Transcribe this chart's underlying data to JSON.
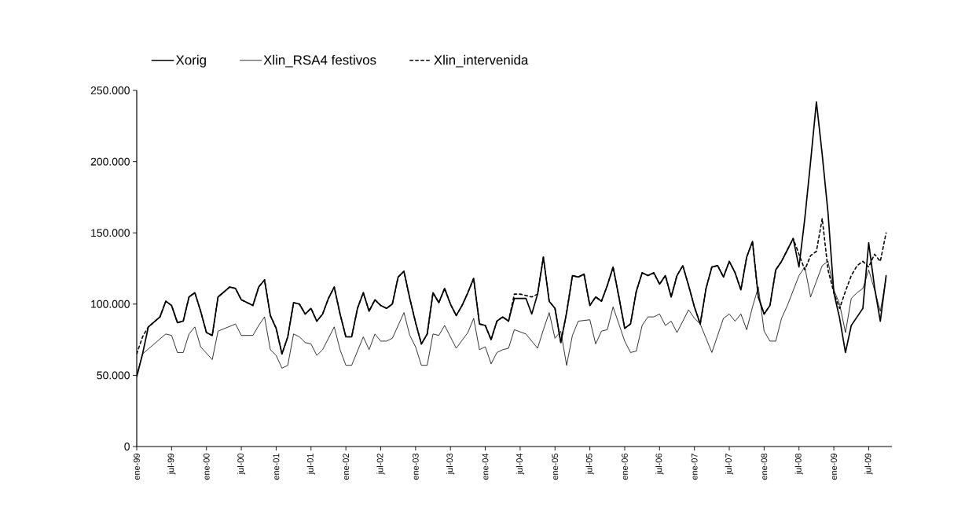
{
  "chart_data": {
    "type": "line",
    "x": [
      "1999-01",
      "1999-02",
      "1999-03",
      "1999-05",
      "1999-06",
      "1999-07",
      "1999-08",
      "1999-09",
      "1999-10",
      "1999-11",
      "1999-12",
      "2000-01",
      "2000-02",
      "2000-03",
      "2000-05",
      "2000-06",
      "2000-07",
      "2000-09",
      "2000-10",
      "2000-11",
      "2000-12",
      "2001-01",
      "2001-02",
      "2001-03",
      "2001-04",
      "2001-05",
      "2001-06",
      "2001-07",
      "2001-08",
      "2001-09",
      "2001-10",
      "2001-11",
      "2001-12",
      "2002-01",
      "2002-02",
      "2002-03",
      "2002-04",
      "2002-05",
      "2002-06",
      "2002-07",
      "2002-08",
      "2002-09",
      "2002-10",
      "2002-11",
      "2002-12",
      "2003-01",
      "2003-02",
      "2003-03",
      "2003-04",
      "2003-05",
      "2003-06",
      "2003-07",
      "2003-08",
      "2003-09",
      "2003-10",
      "2003-11",
      "2003-12",
      "2004-01",
      "2004-02",
      "2004-03",
      "2004-04",
      "2004-05",
      "2004-06",
      "2004-07",
      "2004-08",
      "2004-09",
      "2004-10",
      "2004-11",
      "2004-12",
      "2005-01",
      "2005-02",
      "2005-03",
      "2005-04",
      "2005-05",
      "2005-06",
      "2005-07",
      "2005-08",
      "2005-09",
      "2005-10",
      "2005-11",
      "2005-12",
      "2006-01",
      "2006-02",
      "2006-03",
      "2006-04",
      "2006-05",
      "2006-06",
      "2006-07",
      "2006-08",
      "2006-09",
      "2006-10",
      "2006-11",
      "2006-12",
      "2007-01",
      "2007-02",
      "2007-03",
      "2007-04",
      "2007-05",
      "2007-06",
      "2007-07",
      "2007-08",
      "2007-09",
      "2007-10",
      "2007-11",
      "2007-12",
      "2008-01",
      "2008-02",
      "2008-03",
      "2008-04",
      "2008-05",
      "2008-06",
      "2008-07",
      "2008-08",
      "2008-09",
      "2008-10",
      "2008-11",
      "2008-12",
      "2009-01",
      "2009-02",
      "2009-03",
      "2009-04",
      "2009-05",
      "2009-06",
      "2009-07",
      "2009-08",
      "2009-09",
      "2009-10"
    ],
    "series": [
      {
        "name": "Xorig",
        "color": "#000000",
        "line_style": "solid",
        "values": [
          49000,
          65000,
          84000,
          91000,
          102000,
          99000,
          87000,
          88000,
          105000,
          108000,
          95000,
          80000,
          78000,
          105000,
          112000,
          111000,
          103000,
          99000,
          112000,
          117000,
          92000,
          83000,
          65000,
          77000,
          101000,
          100000,
          93000,
          97000,
          88000,
          93000,
          104000,
          112000,
          93000,
          77000,
          77000,
          97000,
          108000,
          95000,
          103000,
          99000,
          97000,
          100000,
          119000,
          123000,
          104000,
          87000,
          72000,
          79000,
          108000,
          101000,
          111000,
          100000,
          92000,
          99000,
          108000,
          118000,
          86000,
          85000,
          75000,
          88000,
          91000,
          88000,
          104000,
          104000,
          104000,
          93000,
          107000,
          133000,
          102000,
          97000,
          73000,
          94000,
          120000,
          119000,
          121000,
          99000,
          105000,
          102000,
          113000,
          126000,
          105000,
          83000,
          86000,
          109000,
          122000,
          120000,
          122000,
          114000,
          120000,
          105000,
          120000,
          127000,
          113000,
          98000,
          86000,
          111000,
          126000,
          127000,
          119000,
          130000,
          122000,
          110000,
          133000,
          144000,
          105000,
          93000,
          99000,
          124000,
          130000,
          138000,
          146000,
          126000,
          160000,
          200000,
          242000,
          205000,
          164000,
          108000,
          90000,
          66000,
          85000,
          91000,
          97000,
          143000,
          112000,
          88000,
          120000
        ]
      },
      {
        "name": "Xlin_RSA4 festivos",
        "color": "#000000",
        "line_style": "solid",
        "x": [
          "1999-01",
          "1999-02",
          "1999-04",
          "1999-06",
          "1999-07",
          "1999-08",
          "1999-09",
          "1999-10",
          "1999-11",
          "1999-12",
          "2000-02",
          "2000-03",
          "2000-06",
          "2000-07",
          "2000-09",
          "2000-10",
          "2000-11",
          "2000-12",
          "2001-01",
          "2001-02",
          "2001-03",
          "2001-04",
          "2001-05",
          "2001-06",
          "2001-07",
          "2001-08",
          "2001-09",
          "2001-11",
          "2001-12",
          "2002-01",
          "2002-02",
          "2002-04",
          "2002-05",
          "2002-06",
          "2002-07",
          "2002-08",
          "2002-09",
          "2002-11",
          "2002-12",
          "2003-01",
          "2003-02",
          "2003-03",
          "2003-04",
          "2003-05",
          "2003-06",
          "2003-08",
          "2003-10",
          "2003-11",
          "2003-12",
          "2004-01",
          "2004-02",
          "2004-03",
          "2004-04",
          "2004-05",
          "2004-06",
          "2004-08",
          "2004-10",
          "2004-11",
          "2004-12",
          "2005-01",
          "2005-02",
          "2005-03",
          "2005-04",
          "2005-05",
          "2005-07",
          "2005-08",
          "2005-09",
          "2005-10",
          "2005-11",
          "2006-01",
          "2006-02",
          "2006-03",
          "2006-04",
          "2006-05",
          "2006-06",
          "2006-07",
          "2006-08",
          "2006-09",
          "2006-10",
          "2006-11",
          "2006-12",
          "2007-01",
          "2007-02",
          "2007-03",
          "2007-04",
          "2007-06",
          "2007-07",
          "2007-08",
          "2007-09",
          "2007-10",
          "2007-11",
          "2007-12",
          "2008-01",
          "2008-02",
          "2008-03",
          "2008-04",
          "2008-05",
          "2008-07",
          "2008-08",
          "2008-09",
          "2008-10",
          "2008-11",
          "2008-12",
          "2009-01",
          "2009-02",
          "2009-03",
          "2009-04",
          "2009-05",
          "2009-06",
          "2009-07",
          "2009-08",
          "2009-09",
          "2009-10"
        ],
        "values": [
          50000,
          65000,
          72000,
          79000,
          78000,
          66000,
          66000,
          79000,
          84000,
          70000,
          61000,
          81000,
          86000,
          78000,
          78000,
          85000,
          91000,
          68000,
          64000,
          55000,
          57000,
          79000,
          77000,
          73000,
          72000,
          64000,
          68000,
          84000,
          68000,
          57000,
          57000,
          77000,
          68000,
          79000,
          74000,
          74000,
          76000,
          94000,
          78000,
          70000,
          57000,
          57000,
          79000,
          78000,
          85000,
          69000,
          80000,
          90000,
          68000,
          70000,
          58000,
          66000,
          68000,
          69000,
          82000,
          79000,
          69000,
          82000,
          94000,
          76000,
          81000,
          57000,
          78000,
          88000,
          89000,
          72000,
          81000,
          82000,
          98000,
          74000,
          66000,
          67000,
          85000,
          91000,
          91000,
          93000,
          85000,
          88000,
          80000,
          88000,
          96000,
          90000,
          86000,
          76000,
          66000,
          90000,
          93000,
          88000,
          93000,
          82000,
          98000,
          112000,
          81000,
          74000,
          74000,
          90000,
          99000,
          120000,
          126000,
          105000,
          116000,
          127000,
          130000,
          110000,
          100000,
          80000,
          104000,
          108000,
          111000,
          124000,
          110000,
          95000,
          118000
        ]
      },
      {
        "name": "Xlin_intervenida",
        "color": "#000000",
        "line_style": "dashed",
        "values": [
          65000,
          77000,
          84000,
          91000,
          102000,
          99000,
          87000,
          88000,
          105000,
          108000,
          95000,
          80000,
          78000,
          105000,
          112000,
          111000,
          103000,
          99000,
          112000,
          117000,
          92000,
          83000,
          65000,
          77000,
          101000,
          100000,
          93000,
          97000,
          88000,
          93000,
          104000,
          112000,
          93000,
          77000,
          77000,
          97000,
          108000,
          95000,
          103000,
          99000,
          97000,
          100000,
          119000,
          123000,
          104000,
          87000,
          72000,
          79000,
          108000,
          101000,
          111000,
          100000,
          92000,
          99000,
          108000,
          118000,
          86000,
          85000,
          75000,
          88000,
          91000,
          88000,
          107000,
          107000,
          106000,
          105000,
          107000,
          133000,
          102000,
          97000,
          73000,
          94000,
          120000,
          119000,
          121000,
          99000,
          105000,
          102000,
          113000,
          126000,
          105000,
          83000,
          86000,
          109000,
          122000,
          120000,
          122000,
          114000,
          120000,
          105000,
          120000,
          127000,
          113000,
          98000,
          86000,
          111000,
          126000,
          127000,
          119000,
          130000,
          122000,
          110000,
          133000,
          144000,
          105000,
          93000,
          99000,
          124000,
          130000,
          138000,
          146000,
          135000,
          124000,
          134000,
          137000,
          160000,
          124000,
          108000,
          97000,
          109000,
          120000,
          127000,
          130000,
          126000,
          135000,
          130000,
          150000
        ]
      }
    ],
    "xlim": [
      "1999-01",
      "2009-11"
    ],
    "xticks": [
      {
        "value": "1999-01",
        "label": "ene-99"
      },
      {
        "value": "1999-07",
        "label": "jul-99"
      },
      {
        "value": "2000-01",
        "label": "ene-00"
      },
      {
        "value": "2000-07",
        "label": "jul-00"
      },
      {
        "value": "2001-01",
        "label": "ene-01"
      },
      {
        "value": "2001-07",
        "label": "jul-01"
      },
      {
        "value": "2002-01",
        "label": "ene-02"
      },
      {
        "value": "2002-07",
        "label": "jul-02"
      },
      {
        "value": "2003-01",
        "label": "ene-03"
      },
      {
        "value": "2003-07",
        "label": "jul-03"
      },
      {
        "value": "2004-01",
        "label": "ene-04"
      },
      {
        "value": "2004-07",
        "label": "jul-04"
      },
      {
        "value": "2005-01",
        "label": "ene-05"
      },
      {
        "value": "2005-07",
        "label": "jul-05"
      },
      {
        "value": "2006-01",
        "label": "ene-06"
      },
      {
        "value": "2006-07",
        "label": "jul-06"
      },
      {
        "value": "2007-01",
        "label": "ene-07"
      },
      {
        "value": "2007-07",
        "label": "jul-07"
      },
      {
        "value": "2008-01",
        "label": "ene-08"
      },
      {
        "value": "2008-07",
        "label": "jul-08"
      },
      {
        "value": "2009-01",
        "label": "ene-09"
      },
      {
        "value": "2009-07",
        "label": "jul-09"
      }
    ],
    "ylim": [
      0,
      250000
    ],
    "yticks": [
      0,
      {
        "value": 50000,
        "label": "50.000"
      },
      {
        "value": 100000,
        "label": "100.000"
      },
      {
        "value": 150000,
        "label": "150.000"
      },
      {
        "value": 200000,
        "label": "200.000"
      },
      {
        "value": 250000,
        "label": "250.000"
      }
    ],
    "legend": "top",
    "marker": "none"
  }
}
